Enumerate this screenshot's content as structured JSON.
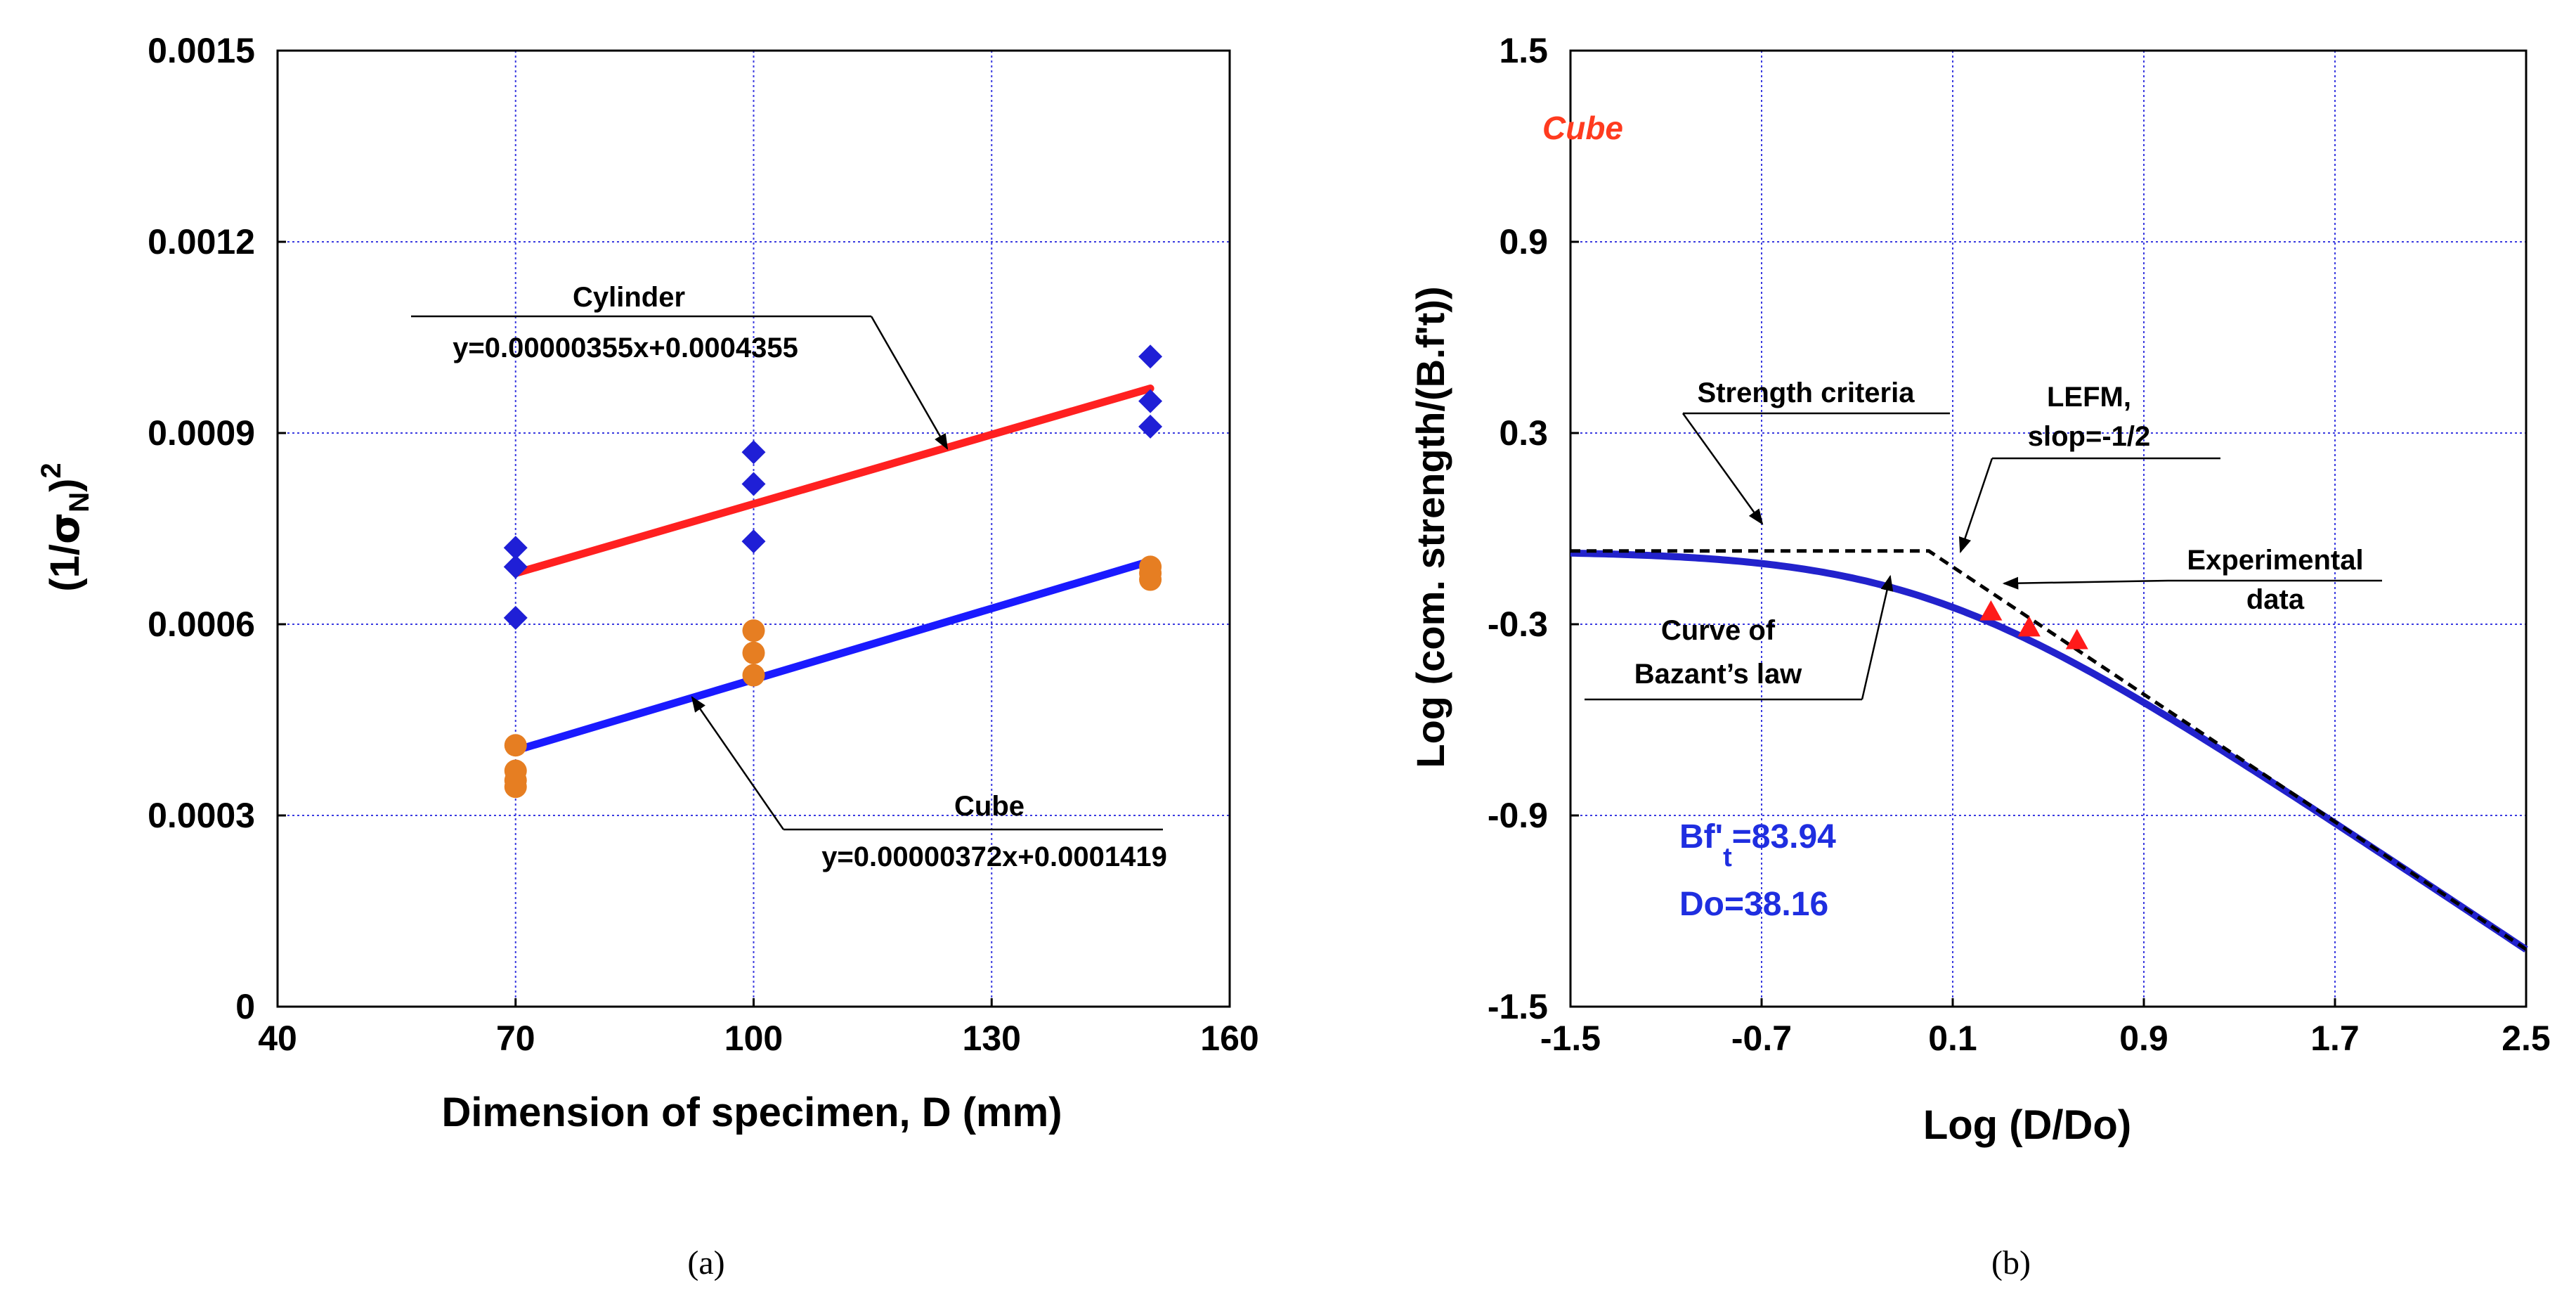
{
  "chart_data": [
    {
      "type": "scatter",
      "panel": "(a)",
      "xlabel": "Dimension of specimen, D (mm)",
      "ylabel_parts": {
        "open": "(1/",
        "sigma": "σ",
        "sub": "N",
        "close": ")",
        "sup": "2"
      },
      "xlim": [
        40,
        160
      ],
      "ylim": [
        0,
        0.0015
      ],
      "xticks": [
        40,
        70,
        100,
        130,
        160
      ],
      "xtick_labels": [
        "40",
        "70",
        "100",
        "130",
        "160"
      ],
      "yticks": [
        0,
        0.0003,
        0.0006,
        0.0009,
        0.0012,
        0.0015
      ],
      "ytick_labels": [
        "0",
        "0.0003",
        "0.0006",
        "0.0009",
        "0.0012",
        "0.0015"
      ],
      "grid": true,
      "series": [
        {
          "marker": "diamond",
          "color": "#1f1fd6",
          "points": [
            [
              70,
              0.00072
            ],
            [
              70,
              0.00069
            ],
            [
              70,
              0.00061
            ],
            [
              100,
              0.00087
            ],
            [
              100,
              0.00082
            ],
            [
              100,
              0.00073
            ],
            [
              150,
              0.00102
            ],
            [
              150,
              0.00095
            ],
            [
              150,
              0.00091
            ]
          ]
        },
        {
          "marker": "circle",
          "color": "#e67e22",
          "points": [
            [
              70,
              0.00041
            ],
            [
              70,
              0.00037
            ],
            [
              70,
              0.000355
            ],
            [
              70,
              0.000345
            ],
            [
              100,
              0.00059
            ],
            [
              100,
              0.000555
            ],
            [
              100,
              0.00052
            ],
            [
              150,
              0.00069
            ],
            [
              150,
              0.00068
            ],
            [
              150,
              0.00067
            ]
          ]
        }
      ],
      "fit_lines": [
        {
          "color": "#ff2020",
          "x": [
            70,
            150
          ],
          "y": [
            0.00068,
            0.00097
          ]
        },
        {
          "color": "#1a1aff",
          "x": [
            70,
            150
          ],
          "y": [
            0.000402,
            0.000699
          ]
        }
      ],
      "annotations": [
        {
          "title": "Cylinder",
          "equation": "y=0.00000355x+0.0004355"
        },
        {
          "title": "Cube",
          "equation": "y=0.00000372x+0.0001419"
        }
      ]
    },
    {
      "type": "line",
      "panel": "(b)",
      "xlabel": "Log (D/Do)",
      "ylabel": "Log (com. strength/(B.f't))",
      "xlim": [
        -1.5,
        2.5
      ],
      "ylim": [
        -1.5,
        1.5
      ],
      "xticks": [
        -1.5,
        -0.7,
        0.1,
        0.9,
        1.7,
        2.5
      ],
      "xtick_labels": [
        "-1.5",
        "-0.7",
        "0.1",
        "0.9",
        "1.7",
        "2.5"
      ],
      "yticks": [
        -1.5,
        -0.9,
        -0.3,
        0.3,
        0.9,
        1.5
      ],
      "ytick_labels": [
        "-1.5",
        "-0.9",
        "-0.3",
        "0.3",
        "0.9",
        "1.5"
      ],
      "grid": true,
      "label": "Cube",
      "strength_level": -0.07,
      "bazant_curve": {
        "color": "#2222cc"
      },
      "asymptotes": {
        "color": "#000000",
        "dashed": true
      },
      "experimental_data": {
        "color": "#ff1a1a",
        "marker": "triangle",
        "points": [
          [
            0.26,
            -0.26
          ],
          [
            0.42,
            -0.31
          ],
          [
            0.62,
            -0.35
          ]
        ]
      },
      "annotations": {
        "strength": "Strength criteria",
        "lefm_1": "LEFM,",
        "lefm_2": "slop=-1/2",
        "exp_1": "Experimental",
        "exp_2": "data",
        "curve_1": "Curve of",
        "curve_2": "Bazant’s law"
      },
      "params": {
        "bf_main": "Bf'",
        "bf_sub": "t",
        "bf_value": "=83.94",
        "do": "Do=38.16"
      }
    }
  ],
  "captions": {
    "a": "(a)",
    "b": "(b)"
  }
}
